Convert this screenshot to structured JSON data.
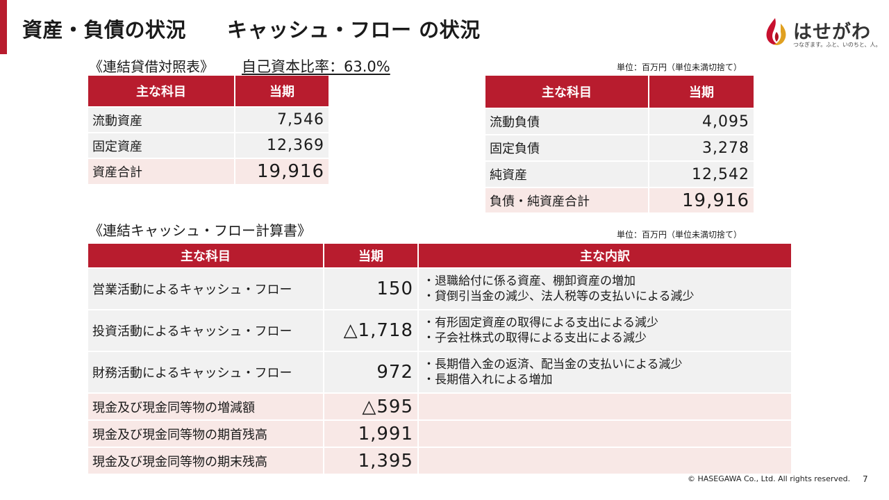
{
  "header": {
    "title": "資産・負債の状況　　キャッシュ・フロー の状況",
    "logo_text": "はせがわ",
    "logo_tagline": "つなぎます。ふと、いのちと、人。"
  },
  "balance_sheet": {
    "section_title": "《連結貸借対照表》",
    "equity_ratio": "自己資本比率：63.0%",
    "unit": "単位：百万円（単位未満切捨て）",
    "col_item": "主な科目",
    "col_period": "当期",
    "assets": [
      {
        "label": "流動資産",
        "value": "7,546"
      },
      {
        "label": "固定資産",
        "value": "12,369"
      },
      {
        "label": "資産合計",
        "value": "19,916"
      }
    ],
    "liabilities": [
      {
        "label": "流動負債",
        "value": "4,095"
      },
      {
        "label": "固定負債",
        "value": "3,278"
      },
      {
        "label": "純資産",
        "value": "12,542"
      },
      {
        "label": "負債・純資産合計",
        "value": "19,916"
      }
    ]
  },
  "cash_flow": {
    "section_title": "《連結キャッシュ・フロー計算書》",
    "unit": "単位：百万円（単位未満切捨て）",
    "col_item": "主な科目",
    "col_period": "当期",
    "col_detail": "主な内訳",
    "rows": [
      {
        "label": "営業活動によるキャッシュ・フロー",
        "value": "150",
        "detail1": "・退職給付に係る資産、棚卸資産の増加",
        "detail2": "・貸倒引当金の減少、法人税等の支払いによる減少"
      },
      {
        "label": "投資活動によるキャッシュ・フロー",
        "value": "△1,718",
        "detail1": "・有形固定資産の取得による支出による減少",
        "detail2": "・子会社株式の取得による支出による減少"
      },
      {
        "label": "財務活動によるキャッシュ・フロー",
        "value": "972",
        "detail1": "・長期借入金の返済、配当金の支払いによる減少",
        "detail2": "・長期借入れによる増加"
      },
      {
        "label": "現金及び現金同等物の増減額",
        "value": "△595",
        "detail1": "",
        "detail2": ""
      },
      {
        "label": "現金及び現金同等物の期首残高",
        "value": "1,991",
        "detail1": "",
        "detail2": ""
      },
      {
        "label": "現金及び現金同等物の期末残高",
        "value": "1,395",
        "detail1": "",
        "detail2": ""
      }
    ]
  },
  "footer": {
    "copyright": "© HASEGAWA Co., Ltd. All rights reserved.",
    "page": "7"
  },
  "colors": {
    "accent": "#b81c2e",
    "cell": "#f1f1f1",
    "total_cell": "#f8e8e6"
  }
}
